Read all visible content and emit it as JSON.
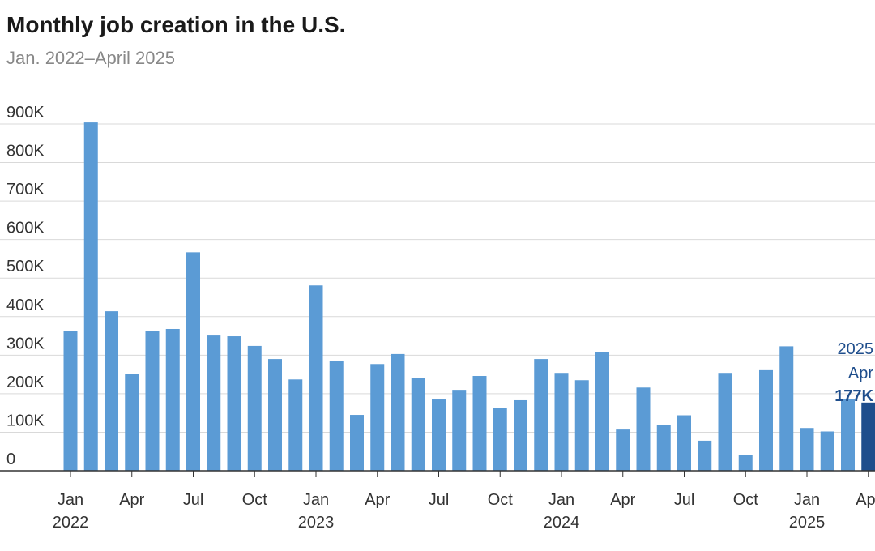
{
  "chart_data": {
    "type": "bar",
    "title": "Monthly job creation in the U.S.",
    "subtitle": "Jan. 2022–April 2025",
    "categories": [
      "Jan",
      null,
      null,
      "Apr",
      null,
      null,
      "Jul",
      null,
      null,
      "Oct",
      null,
      null,
      "Jan",
      null,
      null,
      "Apr",
      null,
      null,
      "Jul",
      null,
      null,
      "Oct",
      null,
      null,
      "Jan",
      null,
      null,
      "Apr",
      null,
      null,
      "Jul",
      null,
      null,
      "Oct",
      null,
      null,
      "Jan",
      null,
      null,
      "Apr"
    ],
    "category_years": [
      "2022",
      null,
      null,
      null,
      null,
      null,
      null,
      null,
      null,
      null,
      null,
      null,
      "2023",
      null,
      null,
      null,
      null,
      null,
      null,
      null,
      null,
      null,
      null,
      null,
      "2024",
      null,
      null,
      null,
      null,
      null,
      null,
      null,
      null,
      null,
      null,
      null,
      "2025",
      null,
      null,
      null
    ],
    "values": [
      363000,
      904000,
      414000,
      252000,
      363000,
      368000,
      567000,
      351000,
      349000,
      324000,
      290000,
      237000,
      481000,
      286000,
      145000,
      277000,
      303000,
      240000,
      185000,
      210000,
      246000,
      164000,
      183000,
      290000,
      254000,
      235000,
      309000,
      107000,
      216000,
      118000,
      144000,
      78000,
      254000,
      42000,
      261000,
      323000,
      111000,
      102000,
      185000,
      177000
    ],
    "color": "#5b9bd5",
    "highlight_color": "#1f4e8c",
    "annotation": {
      "lines": [
        "2025",
        "Apr"
      ],
      "value_label": "177K"
    },
    "ylim": [
      0,
      900000
    ],
    "yticks": [
      0,
      {
        "value": 100000,
        "label": "100K"
      },
      {
        "value": 200000,
        "label": "200K"
      },
      {
        "value": 300000,
        "label": "300K"
      },
      {
        "value": 400000,
        "label": "400K"
      },
      {
        "value": 500000,
        "label": "500K"
      },
      {
        "value": 600000,
        "label": "600K"
      },
      {
        "value": 700000,
        "label": "700K"
      },
      {
        "value": 800000,
        "label": "800K"
      },
      {
        "value": 900000,
        "label": "900K"
      }
    ],
    "grid": true
  }
}
